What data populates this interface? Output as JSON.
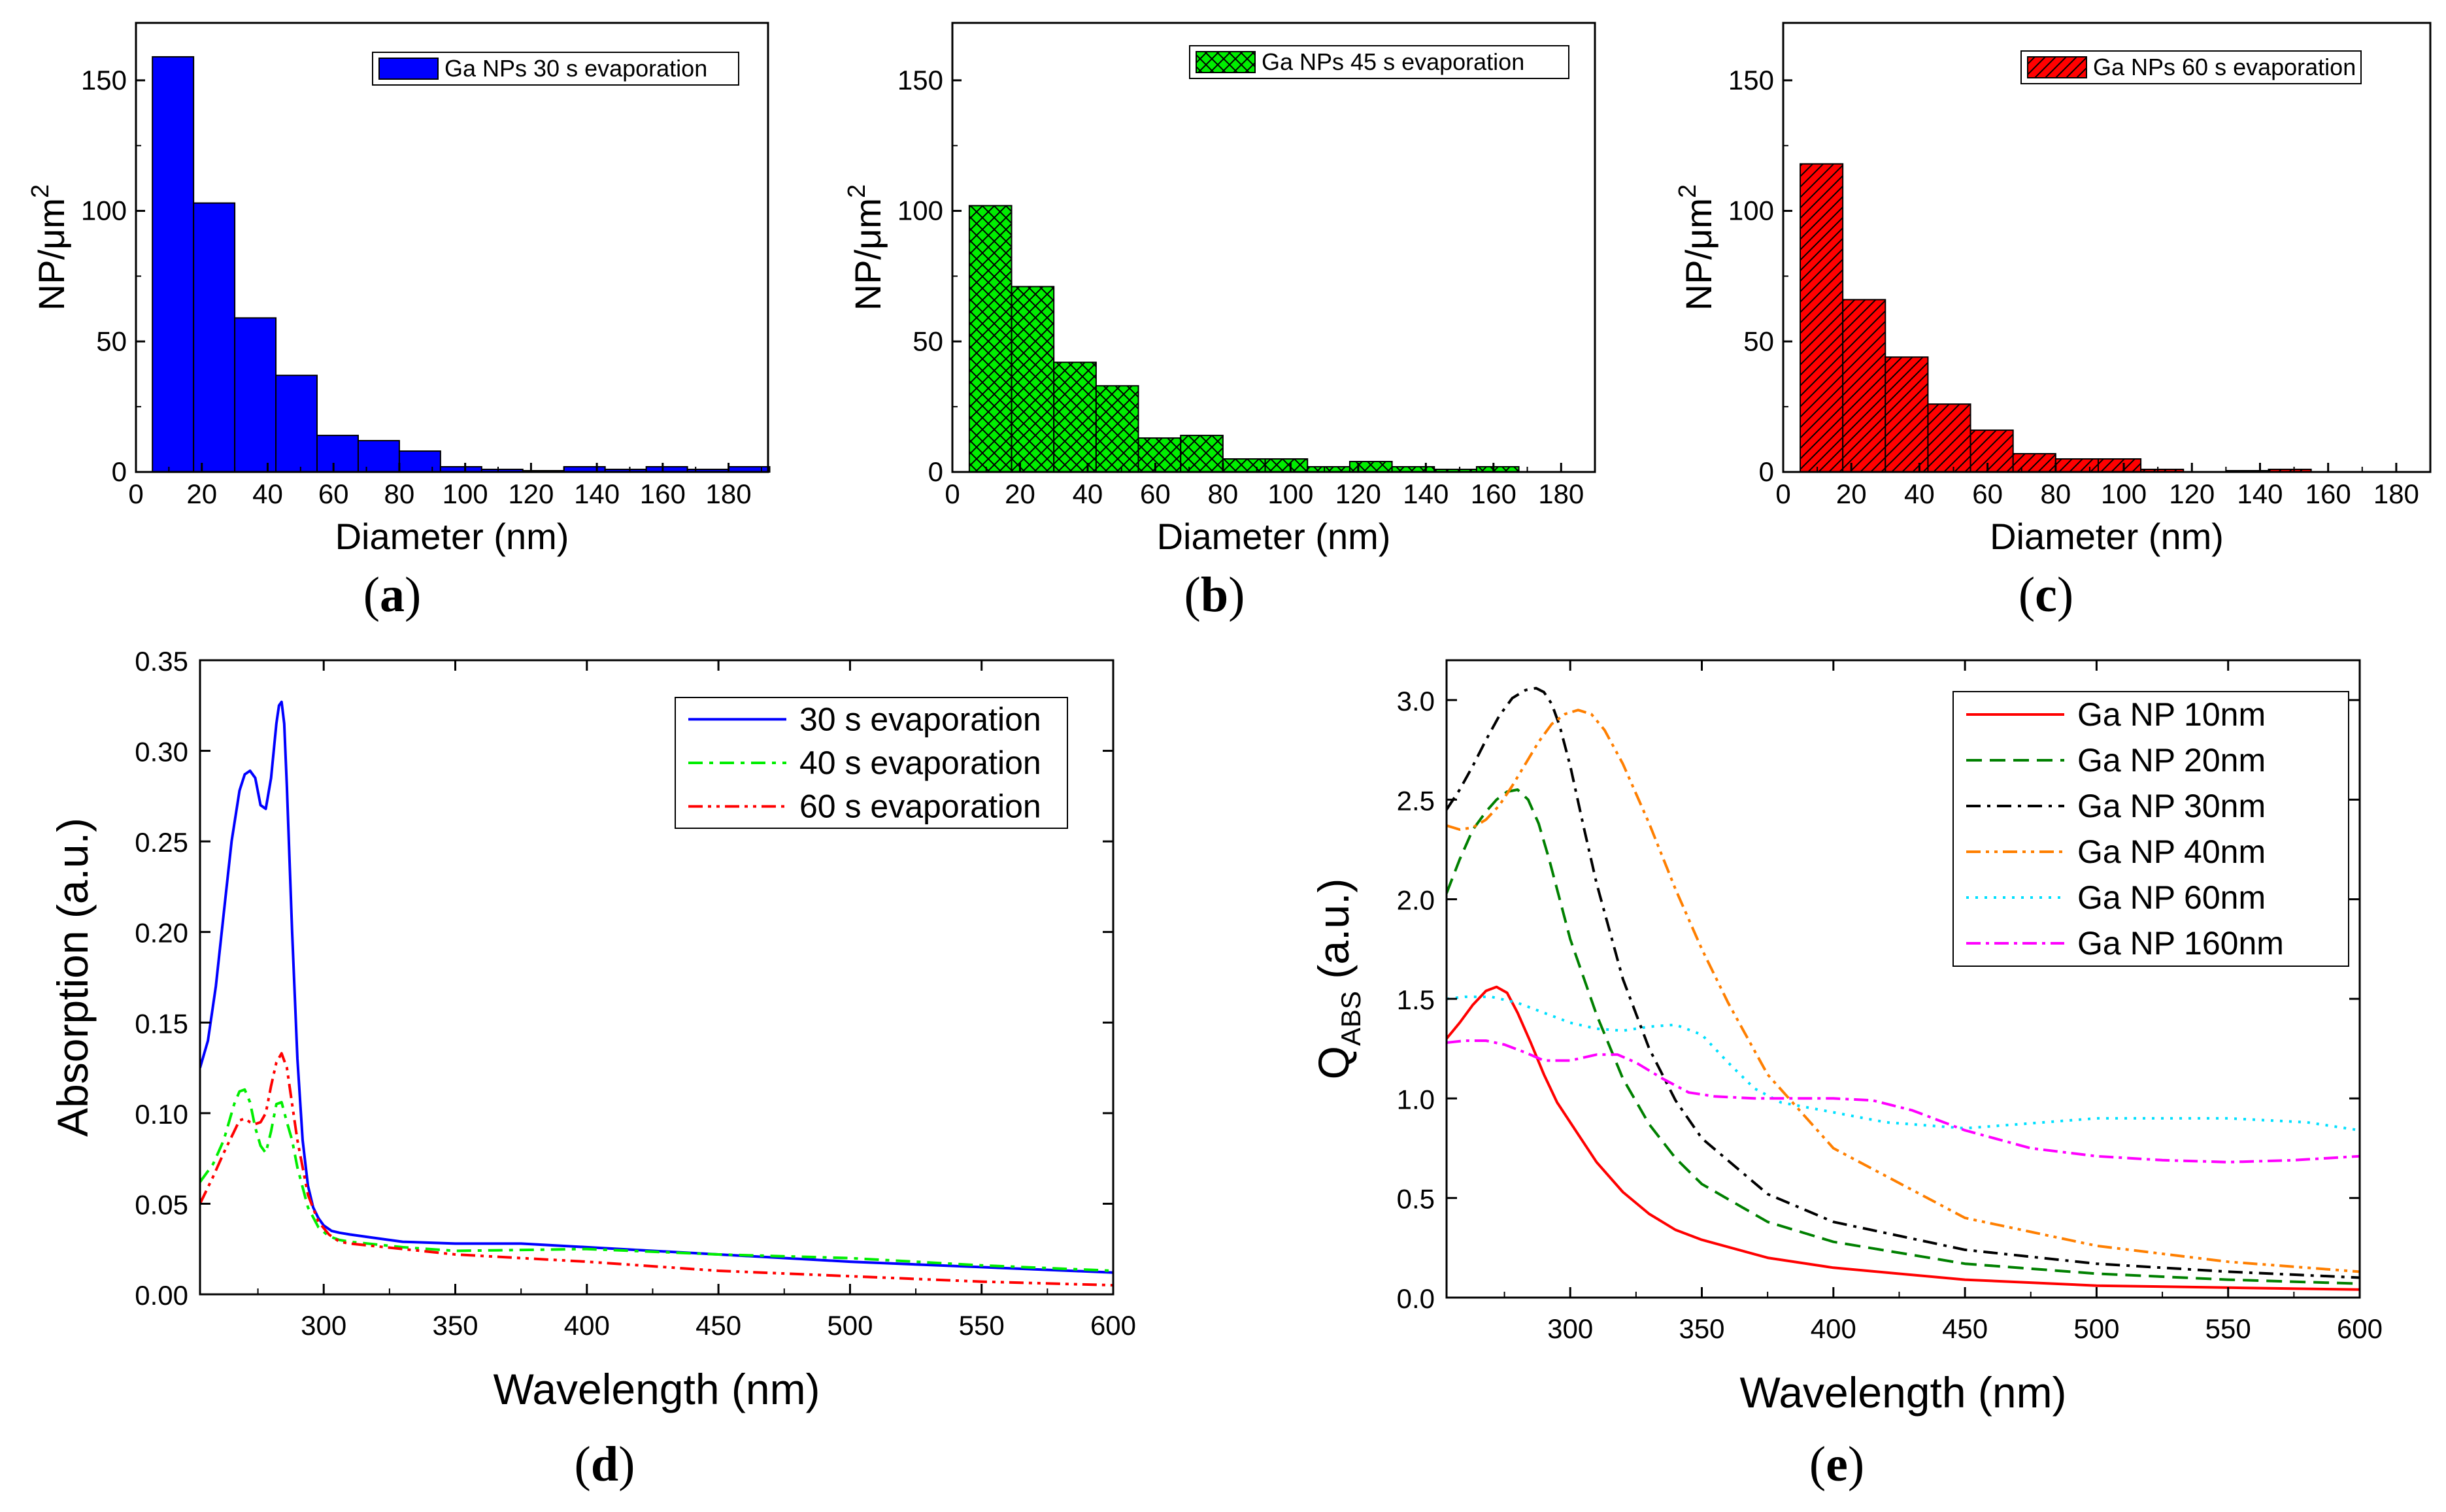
{
  "chart_data": [
    {
      "panel": "a",
      "type": "bar",
      "xlabel": "Diameter (nm)",
      "ylabel_main": "NP/",
      "ylabel_mu": "μm",
      "ylabel_sup": "2",
      "xlim": [
        0,
        192
      ],
      "ylim": [
        0,
        172
      ],
      "xticks": [
        "0",
        "20",
        "40",
        "60",
        "80",
        "100",
        "120",
        "140",
        "160",
        "180"
      ],
      "yticks": [
        "0",
        "50",
        "100",
        "150"
      ],
      "bin_width": 12.5,
      "bin_start": 5,
      "values": [
        159,
        103,
        59,
        37,
        14,
        12,
        8,
        2,
        1,
        0.5,
        2,
        1,
        2,
        1,
        2
      ],
      "legend": "Ga NPs  30 s evaporation",
      "color": "#0000ff",
      "pattern": "solid",
      "panel_label": "a"
    },
    {
      "panel": "b",
      "type": "bar",
      "xlabel": "Diameter (nm)",
      "ylabel_main": "NP/",
      "ylabel_mu": "μm",
      "ylabel_sup": "2",
      "xlim": [
        0,
        190
      ],
      "ylim": [
        0,
        172
      ],
      "xticks": [
        "0",
        "20",
        "40",
        "60",
        "80",
        "100",
        "120",
        "140",
        "160",
        "180"
      ],
      "yticks": [
        "0",
        "50",
        "100",
        "150"
      ],
      "bin_width": 12.5,
      "bin_start": 5,
      "values": [
        102,
        71,
        42,
        33,
        13,
        14,
        5,
        5,
        2,
        4,
        2,
        1,
        2
      ],
      "legend": "Ga NPs  45 s evaporation",
      "color": "#00ee00",
      "pattern": "crosshatch",
      "panel_label": "b"
    },
    {
      "panel": "c",
      "type": "bar",
      "xlabel": "Diameter (nm)",
      "ylabel_main": "NP/",
      "ylabel_mu": "μm",
      "ylabel_sup": "2",
      "xlim": [
        0,
        190
      ],
      "ylim": [
        0,
        172
      ],
      "xticks": [
        "0",
        "20",
        "40",
        "60",
        "80",
        "100",
        "120",
        "140",
        "160",
        "180"
      ],
      "yticks": [
        "0",
        "50",
        "100",
        "150"
      ],
      "bin_width": 12.5,
      "bin_start": 5,
      "values": [
        118,
        66,
        44,
        26,
        16,
        7,
        5,
        5,
        1,
        0,
        0.5,
        1
      ],
      "legend": "Ga NPs  60 s evaporation",
      "color": "#ff0000",
      "pattern": "diagonal",
      "panel_label": "c"
    },
    {
      "panel": "d",
      "type": "line",
      "xlabel": "Wavelength (nm)",
      "ylabel": "Absorption (a.u.)",
      "xlim": [
        253,
        600
      ],
      "ylim": [
        0,
        0.35
      ],
      "xticks": [
        "300",
        "350",
        "400",
        "450",
        "500",
        "550",
        "600"
      ],
      "yticks": [
        "0.00",
        "0.05",
        "0.10",
        "0.15",
        "0.20",
        "0.25",
        "0.30",
        "0.35"
      ],
      "series": [
        {
          "name": "30 s evaporation",
          "color": "#0000ff",
          "dash": "",
          "x": [
            253,
            256,
            259,
            262,
            265,
            268,
            270,
            272,
            274,
            276,
            278,
            280,
            282,
            283,
            284,
            285,
            286,
            288,
            290,
            292,
            294,
            296,
            298,
            300,
            303,
            306,
            310,
            320,
            330,
            350,
            375,
            400,
            450,
            500,
            550,
            600
          ],
          "y": [
            0.125,
            0.14,
            0.17,
            0.21,
            0.25,
            0.278,
            0.287,
            0.289,
            0.285,
            0.27,
            0.268,
            0.285,
            0.315,
            0.325,
            0.327,
            0.315,
            0.28,
            0.2,
            0.13,
            0.085,
            0.06,
            0.048,
            0.042,
            0.038,
            0.035,
            0.034,
            0.033,
            0.031,
            0.029,
            0.028,
            0.028,
            0.026,
            0.022,
            0.018,
            0.015,
            0.012
          ]
        },
        {
          "name": "40 s evaporation",
          "color": "#00ee00",
          "dash": "22,10,6,10",
          "x": [
            253,
            258,
            262,
            266,
            268,
            270,
            272,
            274,
            276,
            278,
            280,
            282,
            284,
            286,
            288,
            290,
            294,
            298,
            302,
            306,
            310,
            330,
            350,
            400,
            450,
            500,
            550,
            600
          ],
          "y": [
            0.062,
            0.072,
            0.085,
            0.105,
            0.112,
            0.113,
            0.106,
            0.092,
            0.082,
            0.078,
            0.09,
            0.105,
            0.106,
            0.095,
            0.085,
            0.07,
            0.048,
            0.037,
            0.032,
            0.03,
            0.029,
            0.026,
            0.024,
            0.025,
            0.022,
            0.02,
            0.016,
            0.013
          ]
        },
        {
          "name": "60 s evaporation",
          "color": "#ff0000",
          "dash": "22,8,5,8,5,8",
          "x": [
            253,
            258,
            262,
            266,
            268,
            270,
            272,
            274,
            276,
            278,
            280,
            282,
            284,
            286,
            288,
            290,
            294,
            298,
            302,
            306,
            310,
            330,
            350,
            400,
            450,
            500,
            550,
            600
          ],
          "y": [
            0.05,
            0.065,
            0.078,
            0.09,
            0.096,
            0.097,
            0.095,
            0.094,
            0.095,
            0.1,
            0.115,
            0.128,
            0.133,
            0.125,
            0.105,
            0.085,
            0.055,
            0.04,
            0.033,
            0.029,
            0.028,
            0.025,
            0.022,
            0.018,
            0.013,
            0.01,
            0.007,
            0.005
          ]
        }
      ],
      "panel_label": "d"
    },
    {
      "panel": "e",
      "type": "line",
      "xlabel": "Wavelength (nm)",
      "ylabel_main": "Q",
      "ylabel_sub": "ABS",
      "ylabel_rest": " (a.u.)",
      "xlim": [
        253,
        600
      ],
      "ylim": [
        0,
        3.2
      ],
      "xticks": [
        "300",
        "350",
        "400",
        "450",
        "500",
        "550",
        "600"
      ],
      "yticks": [
        "0.0",
        "0.5",
        "1.0",
        "1.5",
        "2.0",
        "2.5",
        "3.0"
      ],
      "series": [
        {
          "name": "Ga NP 10nm",
          "color": "#ff0000",
          "dash": "",
          "x": [
            253,
            258,
            263,
            268,
            272,
            276,
            280,
            285,
            290,
            295,
            300,
            310,
            320,
            330,
            340,
            350,
            375,
            400,
            450,
            500,
            550,
            600
          ],
          "y": [
            1.3,
            1.38,
            1.47,
            1.54,
            1.56,
            1.53,
            1.43,
            1.28,
            1.12,
            0.98,
            0.88,
            0.68,
            0.53,
            0.42,
            0.34,
            0.29,
            0.2,
            0.15,
            0.09,
            0.06,
            0.05,
            0.04
          ]
        },
        {
          "name": "Ga NP 20nm",
          "color": "#008000",
          "dash": "24,12",
          "x": [
            253,
            258,
            263,
            268,
            272,
            276,
            280,
            284,
            288,
            292,
            296,
            300,
            310,
            320,
            330,
            340,
            350,
            375,
            400,
            450,
            500,
            550,
            600
          ],
          "y": [
            2.03,
            2.2,
            2.35,
            2.44,
            2.5,
            2.54,
            2.55,
            2.5,
            2.38,
            2.2,
            2.0,
            1.8,
            1.42,
            1.1,
            0.87,
            0.7,
            0.57,
            0.38,
            0.28,
            0.17,
            0.12,
            0.09,
            0.07
          ]
        },
        {
          "name": "Ga NP 30nm",
          "color": "#000000",
          "dash": "22,10,5,10",
          "x": [
            253,
            258,
            263,
            268,
            273,
            278,
            283,
            287,
            290,
            293,
            296,
            300,
            305,
            310,
            320,
            330,
            340,
            350,
            375,
            400,
            450,
            500,
            550,
            600
          ],
          "y": [
            2.45,
            2.55,
            2.67,
            2.8,
            2.92,
            3.01,
            3.05,
            3.06,
            3.04,
            2.98,
            2.87,
            2.67,
            2.37,
            2.08,
            1.6,
            1.25,
            0.99,
            0.8,
            0.52,
            0.38,
            0.24,
            0.17,
            0.13,
            0.1
          ]
        },
        {
          "name": "Ga NP 40nm",
          "color": "#ff7f00",
          "dash": "22,8,5,8,5,8",
          "x": [
            253,
            258,
            263,
            268,
            273,
            278,
            283,
            288,
            293,
            298,
            303,
            308,
            313,
            320,
            330,
            340,
            350,
            360,
            375,
            400,
            450,
            500,
            550,
            600
          ],
          "y": [
            2.37,
            2.35,
            2.36,
            2.4,
            2.47,
            2.57,
            2.68,
            2.79,
            2.88,
            2.93,
            2.95,
            2.93,
            2.85,
            2.68,
            2.38,
            2.05,
            1.75,
            1.48,
            1.12,
            0.75,
            0.4,
            0.26,
            0.18,
            0.13
          ]
        },
        {
          "name": "Ga NP 60nm",
          "color": "#00e0ff",
          "dash": "4,10",
          "x": [
            253,
            260,
            270,
            280,
            290,
            300,
            310,
            320,
            330,
            340,
            350,
            360,
            370,
            380,
            400,
            420,
            450,
            480,
            500,
            520,
            550,
            580,
            600
          ],
          "y": [
            1.5,
            1.51,
            1.51,
            1.48,
            1.43,
            1.38,
            1.35,
            1.34,
            1.36,
            1.37,
            1.32,
            1.18,
            1.05,
            0.98,
            0.93,
            0.88,
            0.85,
            0.88,
            0.9,
            0.9,
            0.9,
            0.88,
            0.84
          ]
        },
        {
          "name": "Ga NP 160nm",
          "color": "#ff00ff",
          "dash": "22,8,5,8",
          "x": [
            253,
            260,
            268,
            275,
            283,
            290,
            300,
            310,
            318,
            325,
            335,
            345,
            355,
            370,
            385,
            400,
            415,
            430,
            450,
            475,
            500,
            525,
            550,
            575,
            600
          ],
          "y": [
            1.28,
            1.29,
            1.29,
            1.27,
            1.23,
            1.19,
            1.19,
            1.22,
            1.22,
            1.18,
            1.1,
            1.03,
            1.01,
            1.0,
            1.0,
            1.0,
            0.99,
            0.94,
            0.84,
            0.75,
            0.71,
            0.69,
            0.68,
            0.69,
            0.71
          ]
        }
      ],
      "panel_label": "e"
    }
  ]
}
